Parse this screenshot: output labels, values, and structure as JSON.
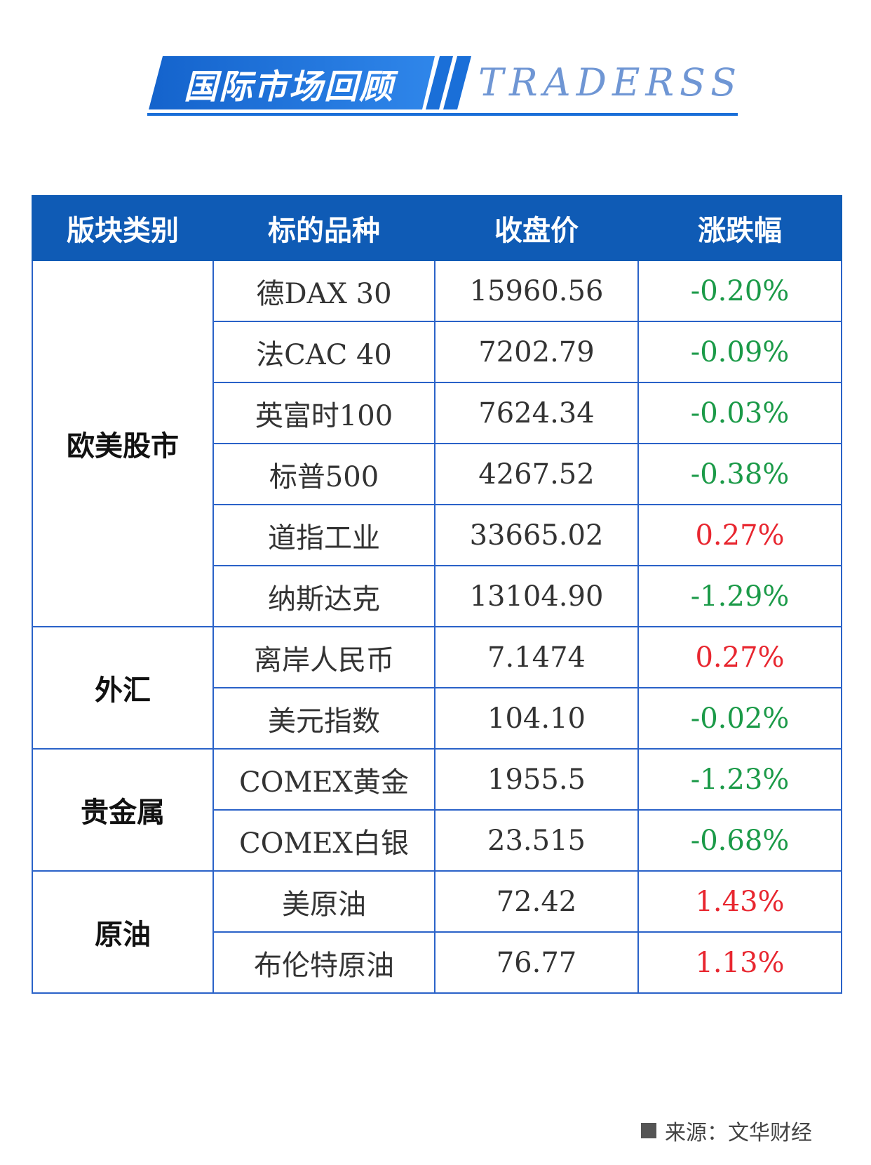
{
  "header": {
    "title": "国际市场回顾",
    "brand": "TRADERSS",
    "colors": {
      "banner_blue": "#1a6fd8",
      "brand_text": "#6f96d4"
    }
  },
  "table": {
    "columns": [
      "版块类别",
      "标的品种",
      "收盘价",
      "涨跌幅"
    ],
    "groups": [
      {
        "sector": "欧美股市",
        "rows": [
          {
            "name": "德DAX 30",
            "close": "15960.56",
            "change": "-0.20%",
            "direction": "down"
          },
          {
            "name": "法CAC 40",
            "close": "7202.79",
            "change": "-0.09%",
            "direction": "down"
          },
          {
            "name": "英富时100",
            "close": "7624.34",
            "change": "-0.03%",
            "direction": "down"
          },
          {
            "name": "标普500",
            "close": "4267.52",
            "change": "-0.38%",
            "direction": "down"
          },
          {
            "name": "道指工业",
            "close": "33665.02",
            "change": "0.27%",
            "direction": "up"
          },
          {
            "name": "纳斯达克",
            "close": "13104.90",
            "change": "-1.29%",
            "direction": "down"
          }
        ]
      },
      {
        "sector": "外汇",
        "rows": [
          {
            "name": "离岸人民币",
            "close": "7.1474",
            "change": "0.27%",
            "direction": "up"
          },
          {
            "name": "美元指数",
            "close": "104.10",
            "change": "-0.02%",
            "direction": "down"
          }
        ]
      },
      {
        "sector": "贵金属",
        "rows": [
          {
            "name": "COMEX黄金",
            "close": "1955.5",
            "change": "-1.23%",
            "direction": "down"
          },
          {
            "name": "COMEX白银",
            "close": "23.515",
            "change": "-0.68%",
            "direction": "down"
          }
        ]
      },
      {
        "sector": "原油",
        "rows": [
          {
            "name": "美原油",
            "close": "72.42",
            "change": "1.43%",
            "direction": "up"
          },
          {
            "name": "布伦特原油",
            "close": "76.77",
            "change": "1.13%",
            "direction": "up"
          }
        ]
      }
    ],
    "colors": {
      "header_bg": "#0f5bb5",
      "border": "#2a62c8",
      "down": "#1b9a48",
      "up": "#e8262f"
    }
  },
  "footer": {
    "source": "来源：文华财经"
  }
}
